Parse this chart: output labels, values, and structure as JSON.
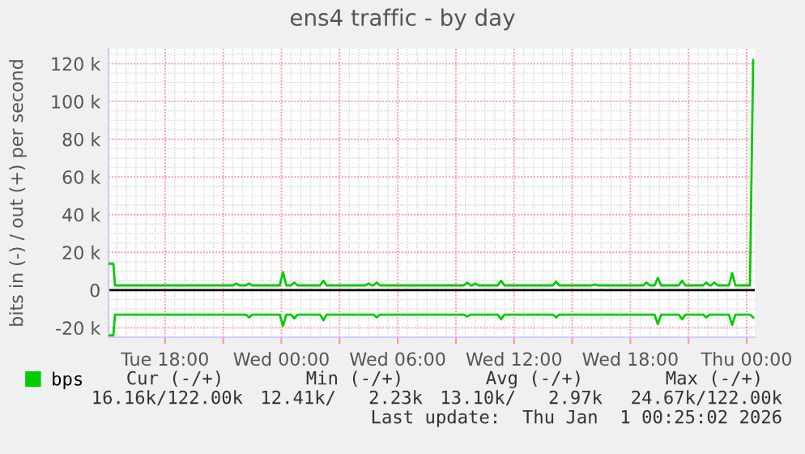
{
  "chart_data": {
    "type": "line",
    "title": "ens4 traffic - by day",
    "ylabel": "bits in (-) / out (+) per second",
    "series": [
      {
        "name": "bps",
        "color": "#00cc00",
        "x": [
          "2025-12-30T15:05",
          "2025-12-30T15:20",
          "2025-12-30T15:25",
          "2025-12-30T21:30",
          "2025-12-30T21:40",
          "2025-12-30T21:50",
          "2025-12-30T22:10",
          "2025-12-30T22:20",
          "2025-12-30T22:30",
          "2025-12-30T23:55",
          "2025-12-31T00:05",
          "2025-12-31T00:15",
          "2025-12-31T00:30",
          "2025-12-31T00:40",
          "2025-12-31T00:50",
          "2025-12-31T02:00",
          "2025-12-31T02:10",
          "2025-12-31T02:20",
          "2025-12-31T04:20",
          "2025-12-31T04:30",
          "2025-12-31T04:40",
          "2025-12-31T04:45",
          "2025-12-31T04:55",
          "2025-12-31T05:05",
          "2025-12-31T09:25",
          "2025-12-31T09:35",
          "2025-12-31T09:45",
          "2025-12-31T09:50",
          "2025-12-31T10:00",
          "2025-12-31T10:10",
          "2025-12-31T11:10",
          "2025-12-31T11:20",
          "2025-12-31T11:30",
          "2025-12-31T14:00",
          "2025-12-31T14:10",
          "2025-12-31T14:20",
          "2025-12-31T16:00",
          "2025-12-31T16:10",
          "2025-12-31T16:20",
          "2025-12-31T18:40",
          "2025-12-31T18:50",
          "2025-12-31T19:00",
          "2025-12-31T19:15",
          "2025-12-31T19:25",
          "2025-12-31T19:35",
          "2025-12-31T20:30",
          "2025-12-31T20:40",
          "2025-12-31T20:50",
          "2025-12-31T21:45",
          "2025-12-31T21:55",
          "2025-12-31T22:05",
          "2025-12-31T22:10",
          "2025-12-31T22:20",
          "2025-12-31T22:30",
          "2025-12-31T23:05",
          "2025-12-31T23:15",
          "2025-12-31T23:25",
          "2026-01-01T00:10",
          "2026-01-01T00:20"
        ],
        "values": [
          14000,
          14000,
          2500,
          2500,
          3500,
          2500,
          2500,
          3500,
          2500,
          2500,
          9500,
          2500,
          2500,
          4000,
          2500,
          2500,
          5000,
          2500,
          2500,
          3500,
          2500,
          2500,
          4000,
          2500,
          2500,
          4000,
          2500,
          2500,
          3500,
          2500,
          2500,
          5000,
          2500,
          2500,
          4500,
          2500,
          2500,
          3000,
          2500,
          2500,
          4000,
          2500,
          2500,
          6500,
          2500,
          2500,
          5000,
          2500,
          2500,
          4000,
          2500,
          2500,
          4000,
          2500,
          2500,
          9000,
          2500,
          2500,
          122000
        ]
      },
      {
        "color": "#00cc00",
        "x": [
          "2025-12-30T15:05",
          "2025-12-30T15:20",
          "2025-12-30T15:25",
          "2025-12-30T22:10",
          "2025-12-30T22:20",
          "2025-12-30T22:30",
          "2025-12-30T23:55",
          "2025-12-31T00:05",
          "2025-12-31T00:15",
          "2025-12-31T00:30",
          "2025-12-31T00:40",
          "2025-12-31T00:50",
          "2025-12-31T02:00",
          "2025-12-31T02:10",
          "2025-12-31T02:20",
          "2025-12-31T04:45",
          "2025-12-31T04:55",
          "2025-12-31T05:05",
          "2025-12-31T09:25",
          "2025-12-31T09:35",
          "2025-12-31T09:45",
          "2025-12-31T11:10",
          "2025-12-31T11:20",
          "2025-12-31T11:30",
          "2025-12-31T14:00",
          "2025-12-31T14:10",
          "2025-12-31T14:20",
          "2025-12-31T19:15",
          "2025-12-31T19:25",
          "2025-12-31T19:35",
          "2025-12-31T20:30",
          "2025-12-31T20:40",
          "2025-12-31T20:50",
          "2025-12-31T21:45",
          "2025-12-31T21:55",
          "2025-12-31T22:05",
          "2025-12-31T23:05",
          "2025-12-31T23:15",
          "2025-12-31T23:25",
          "2026-01-01T00:10",
          "2026-01-01T00:20"
        ],
        "values": [
          -24000,
          -24000,
          -13000,
          -13000,
          -14500,
          -13000,
          -13000,
          -19000,
          -13000,
          -13000,
          -15000,
          -13000,
          -13000,
          -16000,
          -13000,
          -13000,
          -14500,
          -13000,
          -13000,
          -14000,
          -13000,
          -13000,
          -15500,
          -13000,
          -13000,
          -14500,
          -13000,
          -13000,
          -18000,
          -13000,
          -13000,
          -15500,
          -13000,
          -13000,
          -14500,
          -13000,
          -13000,
          -18500,
          -13000,
          -13000,
          -14500
        ]
      }
    ],
    "xlim": [
      "2025-12-30T15:05",
      "2026-01-01T00:25"
    ],
    "xticks": [
      {
        "value": "2025-12-30T18:00",
        "label": "Tue 18:00"
      },
      {
        "value": "2025-12-30T21:00",
        "label": null
      },
      {
        "value": "2025-12-31T00:00",
        "label": "Wed 00:00"
      },
      {
        "value": "2025-12-31T03:00",
        "label": null
      },
      {
        "value": "2025-12-31T06:00",
        "label": "Wed 06:00"
      },
      {
        "value": "2025-12-31T09:00",
        "label": null
      },
      {
        "value": "2025-12-31T12:00",
        "label": "Wed 12:00"
      },
      {
        "value": "2025-12-31T15:00",
        "label": null
      },
      {
        "value": "2025-12-31T18:00",
        "label": "Wed 18:00"
      },
      {
        "value": "2025-12-31T21:00",
        "label": null
      },
      {
        "value": "2026-01-01T00:00",
        "label": "Thu 00:00"
      }
    ],
    "ylim": [
      -25000,
      128000
    ],
    "yticks": [
      {
        "value": -20000,
        "label": "-20 k"
      },
      0,
      {
        "value": 20000,
        "label": "20 k"
      },
      {
        "value": 40000,
        "label": "40 k"
      },
      {
        "value": 60000,
        "label": "60 k"
      },
      {
        "value": 80000,
        "label": "80 k"
      },
      {
        "value": 100000,
        "label": "100 k"
      },
      {
        "value": 120000,
        "label": "120 k"
      }
    ],
    "ref_lines": [
      {
        "axis": "y",
        "value": 0,
        "color": "#000000"
      }
    ],
    "grid": true,
    "legend": "bottom",
    "marker": "none",
    "line_style": "solid",
    "annotations": [
      "Cur (-/+)",
      "Min (-/+)",
      "Avg (-/+)",
      "Max (-/+)",
      "16.16k/122.00k",
      "12.41k/   2.23k",
      "13.10k/   2.97k",
      "24.67k/122.00k",
      "Last update:  Thu Jan  1 00:25:02 2026"
    ]
  }
}
